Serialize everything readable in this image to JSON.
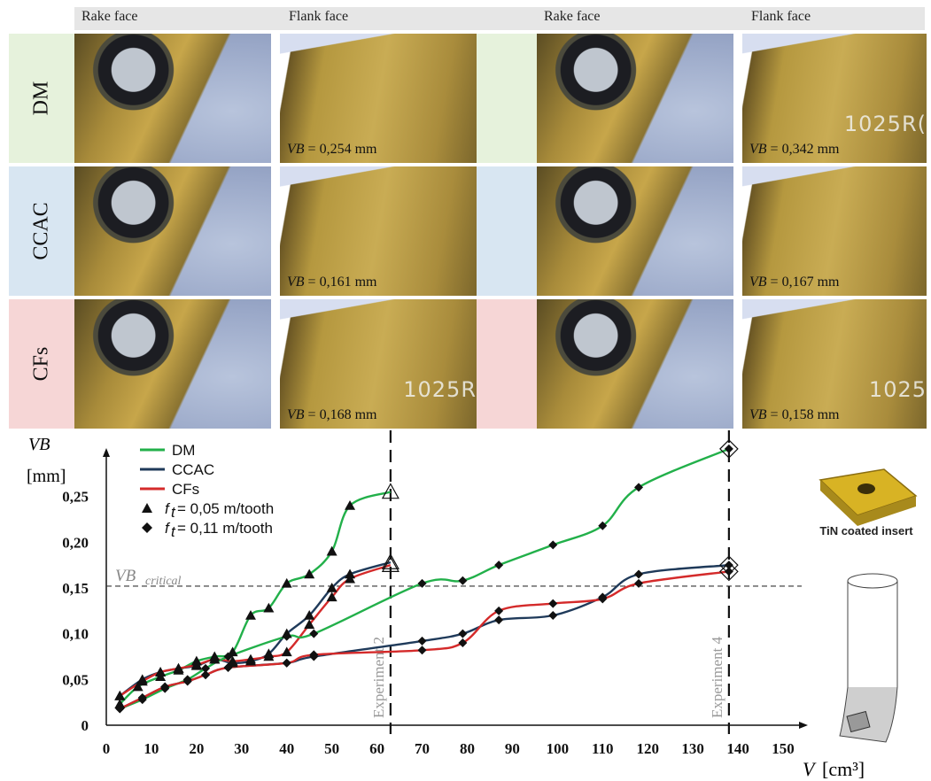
{
  "column_headers": [
    "Rake face",
    "Flank face",
    "Rake face",
    "Flank face"
  ],
  "rows": [
    {
      "label": "DM",
      "bg": "#e6f2dc",
      "vb": [
        "0,254 mm",
        "0,342 mm"
      ],
      "stamp": [
        "",
        "1025R("
      ]
    },
    {
      "label": "CCAC",
      "bg": "#d8e6f2",
      "vb": [
        "0,161 mm",
        "0,167 mm"
      ],
      "stamp": [
        "",
        ""
      ]
    },
    {
      "label": "CFs",
      "bg": "#f6d6d6",
      "vb": [
        "0,168 mm",
        "0,158 mm"
      ],
      "stamp": [
        "1025R",
        "1025"
      ]
    }
  ],
  "vb_symbol": "VB",
  "vb_eq": " = ",
  "tool_caption": "TiN coated insert",
  "chart_data": {
    "type": "line",
    "ylabel": "VB",
    "ylabel_unit": "[mm]",
    "xlabel": "V",
    "xlabel_unit": "[cm³]",
    "xlim": [
      0,
      150
    ],
    "ylim": [
      0,
      0.3
    ],
    "x_ticks": [
      "0",
      "10",
      "20",
      "30",
      "40",
      "50",
      "60",
      "70",
      "80",
      "90",
      "100",
      "110",
      "120",
      "130",
      "140",
      "150"
    ],
    "y_ticks": [
      "0",
      "0,05",
      "0,10",
      "0,15",
      "0,20",
      "0,25"
    ],
    "critical_label": "VB",
    "critical_sub": "critical",
    "critical_value": 0.152,
    "verticals": [
      {
        "x": 63,
        "label": "Experiment 2"
      },
      {
        "x": 138,
        "label": "Experiment 4"
      }
    ],
    "legend": [
      {
        "name": "DM",
        "color": "#22b04a"
      },
      {
        "name": "CCAC",
        "color": "#1f3a5a"
      },
      {
        "name": "CFs",
        "color": "#d42a2a"
      }
    ],
    "markers_legend": [
      {
        "marker": "triangle",
        "prefix": "f",
        "sub": "t",
        "text": " = 0,05 m/tooth"
      },
      {
        "marker": "diamond",
        "prefix": "f",
        "sub": "t",
        "text": " = 0,11 m/tooth"
      }
    ],
    "series": [
      {
        "name": "DM",
        "marker": "triangle",
        "color": "#22b04a",
        "x": [
          3,
          7,
          12,
          16,
          20,
          24,
          28,
          32,
          36,
          40,
          45,
          50,
          54,
          63
        ],
        "y": [
          0.023,
          0.042,
          0.053,
          0.06,
          0.07,
          0.075,
          0.08,
          0.12,
          0.128,
          0.155,
          0.165,
          0.19,
          0.24,
          0.255
        ]
      },
      {
        "name": "CCAC",
        "marker": "triangle",
        "color": "#1f3a5a",
        "x": [
          3,
          8,
          12,
          16,
          20,
          24,
          28,
          32,
          36,
          40,
          45,
          50,
          54,
          63
        ],
        "y": [
          0.032,
          0.05,
          0.058,
          0.062,
          0.065,
          0.072,
          0.068,
          0.07,
          0.078,
          0.1,
          0.12,
          0.15,
          0.165,
          0.178
        ]
      },
      {
        "name": "CFs",
        "marker": "triangle",
        "color": "#d42a2a",
        "x": [
          3,
          8,
          12,
          16,
          20,
          24,
          28,
          32,
          36,
          40,
          45,
          50,
          54,
          63
        ],
        "y": [
          0.032,
          0.048,
          0.058,
          0.062,
          0.066,
          0.072,
          0.07,
          0.072,
          0.075,
          0.08,
          0.11,
          0.14,
          0.16,
          0.175
        ]
      },
      {
        "name": "DM",
        "marker": "diamond",
        "color": "#22b04a",
        "x": [
          3,
          8,
          13,
          18,
          22,
          27,
          40,
          46,
          70,
          79,
          87,
          99,
          110,
          118,
          138
        ],
        "y": [
          0.018,
          0.028,
          0.04,
          0.05,
          0.062,
          0.075,
          0.097,
          0.1,
          0.155,
          0.158,
          0.175,
          0.197,
          0.218,
          0.26,
          0.302
        ]
      },
      {
        "name": "CCAC",
        "marker": "diamond",
        "color": "#1f3a5a",
        "x": [
          3,
          8,
          13,
          18,
          22,
          27,
          40,
          46,
          70,
          79,
          87,
          99,
          110,
          118,
          138
        ],
        "y": [
          0.018,
          0.03,
          0.042,
          0.048,
          0.055,
          0.063,
          0.068,
          0.075,
          0.092,
          0.1,
          0.115,
          0.12,
          0.14,
          0.165,
          0.175
        ]
      },
      {
        "name": "CFs",
        "marker": "diamond",
        "color": "#d42a2a",
        "x": [
          3,
          8,
          13,
          18,
          22,
          27,
          40,
          46,
          70,
          79,
          87,
          99,
          110,
          118,
          138
        ],
        "y": [
          0.018,
          0.03,
          0.042,
          0.048,
          0.055,
          0.063,
          0.068,
          0.077,
          0.082,
          0.09,
          0.125,
          0.133,
          0.138,
          0.155,
          0.168
        ]
      }
    ]
  }
}
